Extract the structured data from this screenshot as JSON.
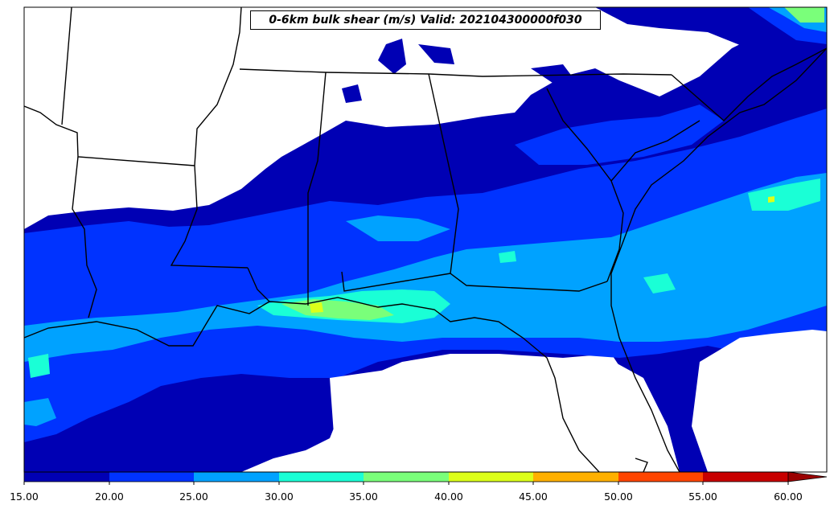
{
  "map": {
    "title": "0-6km bulk shear (m/s) Valid: 202104300000f030"
  },
  "colorbar": {
    "ticks": [
      "15.00",
      "20.00",
      "25.00",
      "30.00",
      "35.00",
      "40.00",
      "45.00",
      "50.00",
      "55.00",
      "60.00"
    ],
    "levels": [
      15,
      20,
      25,
      30,
      35,
      40,
      45,
      50,
      55,
      60
    ],
    "colors": [
      "#0000b4",
      "#0033ff",
      "#00a2ff",
      "#1affd6",
      "#7aff7a",
      "#dcff1a",
      "#ffb000",
      "#ff4500",
      "#c80000"
    ],
    "extend_color": "#9a0000"
  }
}
